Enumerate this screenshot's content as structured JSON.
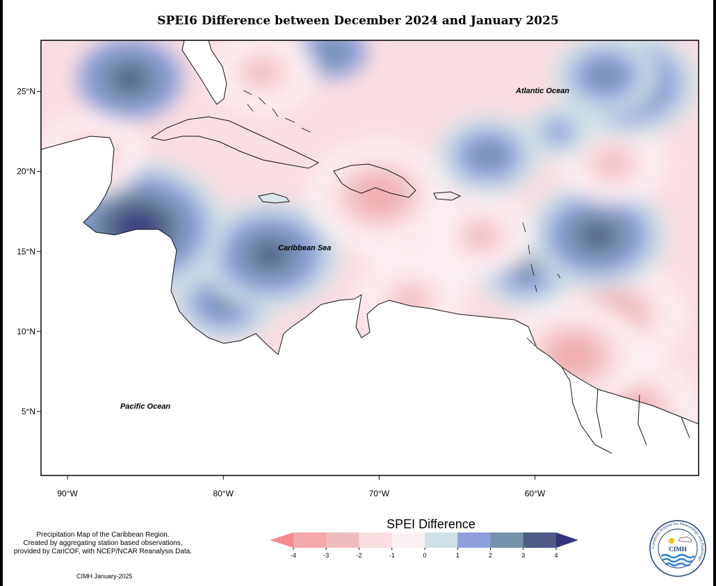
{
  "title": "SPEI6 Difference between December 2024 and January 2025",
  "axes": {
    "x_ticks": [
      {
        "lon": -90,
        "label": "90°W"
      },
      {
        "lon": -80,
        "label": "80°W"
      },
      {
        "lon": -70,
        "label": "70°W"
      },
      {
        "lon": -60,
        "label": "60°W"
      }
    ],
    "y_ticks": [
      {
        "lat": 25,
        "label": "25°N"
      },
      {
        "lat": 20,
        "label": "20°N"
      },
      {
        "lat": 15,
        "label": "15°N"
      },
      {
        "lat": 10,
        "label": "10°N"
      },
      {
        "lat": 5,
        "label": "5°N"
      }
    ],
    "lon_range": [
      -91.7,
      -49.5
    ],
    "lat_range": [
      1.0,
      28.2
    ]
  },
  "map_labels": {
    "atlantic": "Atlantic Ocean",
    "caribbean": "Caribbean Sea",
    "pacific": "Pacific Ocean"
  },
  "legend": {
    "title": "SPEI Difference",
    "tick_labels": [
      "-4",
      "-3",
      "-2",
      "-1",
      "0",
      "1",
      "2",
      "3",
      "4"
    ],
    "colors": [
      "#f58a8e",
      "#f2a7aa",
      "#efbcbe",
      "#f9dde1",
      "#fcf2f4",
      "#cfe0e6",
      "#8f9fdc",
      "#7591ab",
      "#4f5b86",
      "#35347a"
    ]
  },
  "notes": {
    "line1": "Precipitation Map of the Caribbean Region.",
    "line2": "Created by aggregating station based observations,",
    "line3": "provided by CariCOF, with NCEP/NCAR Reanalysis Data.",
    "credit": "CIMH January-2025"
  },
  "logo": {
    "text": "CIMH",
    "ring_text": "Caribbean Institute for Meteorology and Hydrology"
  },
  "chart_data": {
    "type": "heatmap",
    "title": "SPEI6 Difference between December 2024 and January 2025",
    "value_range": [
      -4,
      4
    ],
    "anomaly_centers": [
      {
        "lon": -86.0,
        "lat": 25.8,
        "value": 3.0
      },
      {
        "lon": -77.5,
        "lat": 26.2,
        "value": -3.0
      },
      {
        "lon": -73.0,
        "lat": 27.5,
        "value": 2.0
      },
      {
        "lon": -55.5,
        "lat": 26.0,
        "value": 2.5
      },
      {
        "lon": -54.0,
        "lat": 25.5,
        "value": 3.2
      },
      {
        "lon": -58.5,
        "lat": 22.5,
        "value": 1.8
      },
      {
        "lon": -63.0,
        "lat": 21.0,
        "value": 2.6
      },
      {
        "lon": -55.0,
        "lat": 20.5,
        "value": -2.2
      },
      {
        "lon": -88.5,
        "lat": 21.0,
        "value": -2.8
      },
      {
        "lon": -70.0,
        "lat": 18.5,
        "value": -3.2
      },
      {
        "lon": -68.5,
        "lat": 16.5,
        "value": -3.0
      },
      {
        "lon": -63.5,
        "lat": 16.0,
        "value": -3.0
      },
      {
        "lon": -56.0,
        "lat": 16.0,
        "value": 3.8
      },
      {
        "lon": -60.5,
        "lat": 14.0,
        "value": 2.5
      },
      {
        "lon": -85.5,
        "lat": 16.5,
        "value": 4.5
      },
      {
        "lon": -77.0,
        "lat": 14.8,
        "value": 3.5
      },
      {
        "lon": -80.0,
        "lat": 11.8,
        "value": 2.2
      },
      {
        "lon": -81.5,
        "lat": 12.5,
        "value": -3.2
      },
      {
        "lon": -68.0,
        "lat": 12.0,
        "value": -3.0
      },
      {
        "lon": -65.0,
        "lat": 13.5,
        "value": -0.5
      },
      {
        "lon": -57.5,
        "lat": 8.5,
        "value": -3.6
      },
      {
        "lon": -54.0,
        "lat": 5.0,
        "value": -3.3
      },
      {
        "lon": -59.0,
        "lat": 4.0,
        "value": -2.2
      },
      {
        "lon": -55.0,
        "lat": 11.0,
        "value": -3.5
      }
    ]
  }
}
